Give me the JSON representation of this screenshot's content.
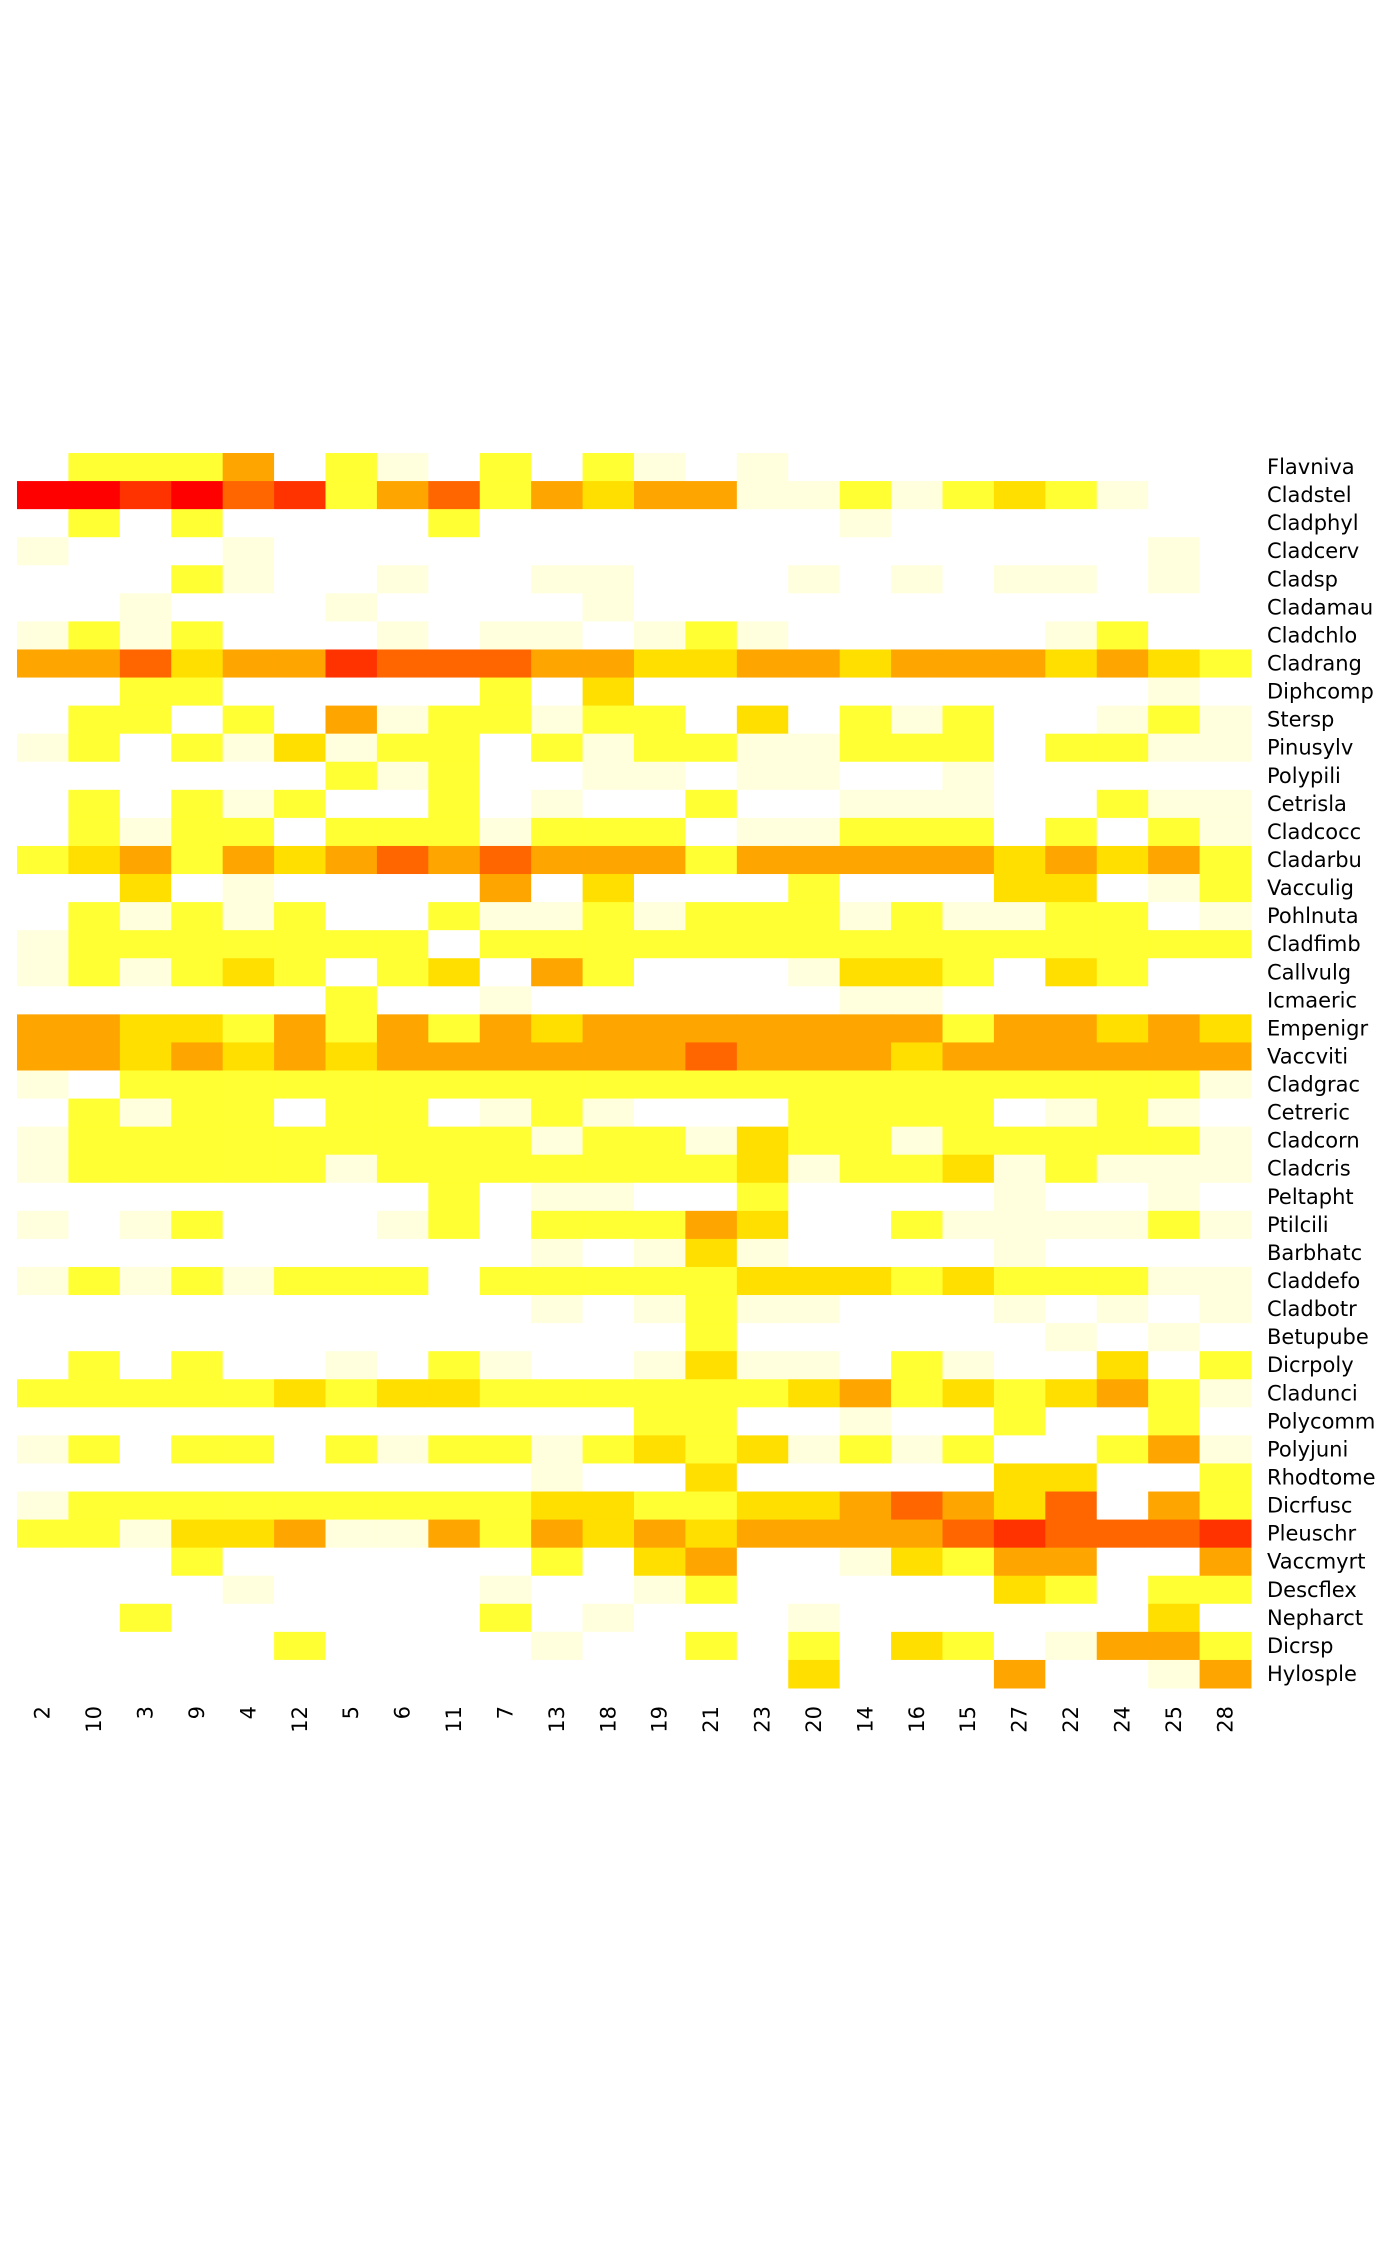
{
  "chart_data": {
    "type": "heatmap",
    "categories": [
      "2",
      "10",
      "3",
      "9",
      "4",
      "12",
      "5",
      "6",
      "11",
      "7",
      "13",
      "18",
      "19",
      "21",
      "23",
      "20",
      "14",
      "16",
      "15",
      "27",
      "22",
      "24",
      "25",
      "28"
    ],
    "rows": [
      "Flavniva",
      "Cladstel",
      "Cladphyl",
      "Cladcerv",
      "Cladsp",
      "Cladamau",
      "Cladchlo",
      "Cladrang",
      "Diphcomp",
      "Stersp",
      "Pinusylv",
      "Polypili",
      "Cetrisla",
      "Cladcocc",
      "Cladarbu",
      "Vacculig",
      "Pohlnuta",
      "Cladfimb",
      "Callvulg",
      "Icmaeric",
      "Empenigr",
      "Vaccviti",
      "Cladgrac",
      "Cetreric",
      "Cladcorn",
      "Cladcris",
      "Peltapht",
      "Ptilcili",
      "Barbhatc",
      "Claddefo",
      "Cladbotr",
      "Betupube",
      "Dicrpoly",
      "Cladunci",
      "Polycomm",
      "Polyjuni",
      "Rhodtome",
      "Dicrfusc",
      "Pleuschr",
      "Vaccmyrt",
      "Descflex",
      "Nepharct",
      "Dicrsp",
      "Hylosple"
    ],
    "colors": [
      "#FFFFFF",
      "#FFFFDD",
      "#FFFF33",
      "#FFDF00",
      "#FFA500",
      "#FF6600",
      "#FF3300",
      "#FF0000"
    ],
    "values": [
      [
        0,
        2,
        2,
        2,
        4,
        0,
        2,
        1,
        0,
        2,
        0,
        2,
        1,
        0,
        1,
        0,
        0,
        0,
        0,
        0,
        0,
        0,
        0,
        0
      ],
      [
        7,
        7,
        6,
        7,
        5,
        6,
        2,
        4,
        5,
        2,
        4,
        3,
        4,
        4,
        1,
        1,
        2,
        1,
        2,
        3,
        2,
        1,
        0,
        0
      ],
      [
        0,
        2,
        0,
        2,
        0,
        0,
        0,
        0,
        2,
        0,
        0,
        0,
        0,
        0,
        0,
        0,
        1,
        0,
        0,
        0,
        0,
        0,
        0,
        0
      ],
      [
        1,
        0,
        0,
        0,
        1,
        0,
        0,
        0,
        0,
        0,
        0,
        0,
        0,
        0,
        0,
        0,
        0,
        0,
        0,
        0,
        0,
        0,
        1,
        0
      ],
      [
        0,
        0,
        0,
        2,
        1,
        0,
        0,
        1,
        0,
        0,
        1,
        1,
        0,
        0,
        0,
        1,
        0,
        1,
        0,
        1,
        1,
        0,
        1,
        0
      ],
      [
        0,
        0,
        1,
        0,
        0,
        0,
        1,
        0,
        0,
        0,
        0,
        1,
        0,
        0,
        0,
        0,
        0,
        0,
        0,
        0,
        0,
        0,
        0,
        0
      ],
      [
        1,
        2,
        1,
        2,
        0,
        0,
        0,
        1,
        0,
        1,
        1,
        0,
        1,
        2,
        1,
        0,
        0,
        0,
        0,
        0,
        1,
        2,
        0,
        0
      ],
      [
        4,
        4,
        5,
        3,
        4,
        4,
        6,
        5,
        5,
        5,
        4,
        4,
        3,
        3,
        4,
        4,
        3,
        4,
        4,
        4,
        3,
        4,
        3,
        2
      ],
      [
        0,
        0,
        2,
        2,
        0,
        0,
        0,
        0,
        0,
        2,
        0,
        3,
        0,
        0,
        0,
        0,
        0,
        0,
        0,
        0,
        0,
        0,
        1,
        0
      ],
      [
        0,
        2,
        2,
        0,
        2,
        0,
        4,
        1,
        2,
        2,
        1,
        2,
        2,
        0,
        3,
        0,
        2,
        1,
        2,
        0,
        0,
        1,
        2,
        1
      ],
      [
        1,
        2,
        0,
        2,
        1,
        3,
        1,
        2,
        2,
        0,
        2,
        1,
        2,
        2,
        1,
        1,
        2,
        2,
        2,
        0,
        2,
        2,
        1,
        1
      ],
      [
        0,
        0,
        0,
        0,
        0,
        0,
        2,
        1,
        2,
        0,
        0,
        1,
        1,
        0,
        1,
        1,
        0,
        0,
        1,
        0,
        0,
        0,
        0,
        0
      ],
      [
        0,
        2,
        0,
        2,
        1,
        2,
        0,
        0,
        2,
        0,
        1,
        0,
        0,
        2,
        0,
        0,
        1,
        1,
        1,
        0,
        0,
        2,
        1,
        1
      ],
      [
        0,
        2,
        1,
        2,
        2,
        0,
        2,
        2,
        2,
        1,
        2,
        2,
        2,
        0,
        1,
        1,
        2,
        2,
        2,
        0,
        2,
        0,
        2,
        1
      ],
      [
        2,
        3,
        4,
        2,
        4,
        3,
        4,
        5,
        4,
        5,
        4,
        4,
        4,
        2,
        4,
        4,
        4,
        4,
        4,
        3,
        4,
        3,
        4,
        2
      ],
      [
        0,
        0,
        3,
        0,
        1,
        0,
        0,
        0,
        0,
        4,
        0,
        3,
        0,
        0,
        0,
        2,
        0,
        0,
        0,
        3,
        3,
        0,
        1,
        2
      ],
      [
        0,
        2,
        1,
        2,
        1,
        2,
        0,
        0,
        2,
        1,
        1,
        2,
        1,
        2,
        2,
        2,
        1,
        2,
        1,
        1,
        2,
        2,
        0,
        1
      ],
      [
        1,
        2,
        2,
        2,
        2,
        2,
        2,
        2,
        0,
        2,
        2,
        2,
        2,
        2,
        2,
        2,
        2,
        2,
        2,
        2,
        2,
        2,
        2,
        2
      ],
      [
        1,
        2,
        1,
        2,
        3,
        2,
        0,
        2,
        3,
        0,
        4,
        2,
        0,
        0,
        0,
        1,
        3,
        3,
        2,
        0,
        3,
        2,
        0,
        0
      ],
      [
        0,
        0,
        0,
        0,
        0,
        0,
        2,
        0,
        0,
        1,
        0,
        0,
        0,
        0,
        0,
        0,
        1,
        1,
        0,
        0,
        0,
        0,
        0,
        0
      ],
      [
        4,
        4,
        3,
        3,
        2,
        4,
        2,
        4,
        2,
        4,
        3,
        4,
        4,
        4,
        4,
        4,
        4,
        4,
        2,
        4,
        4,
        3,
        4,
        3
      ],
      [
        4,
        4,
        3,
        4,
        3,
        4,
        3,
        4,
        4,
        4,
        4,
        4,
        4,
        5,
        4,
        4,
        4,
        3,
        4,
        4,
        4,
        4,
        4,
        4
      ],
      [
        1,
        0,
        2,
        2,
        2,
        2,
        2,
        2,
        2,
        2,
        2,
        2,
        2,
        2,
        2,
        2,
        2,
        2,
        2,
        2,
        2,
        2,
        2,
        1
      ],
      [
        0,
        2,
        1,
        2,
        2,
        0,
        2,
        2,
        0,
        1,
        2,
        1,
        0,
        0,
        0,
        2,
        2,
        2,
        2,
        0,
        1,
        2,
        1,
        0
      ],
      [
        1,
        2,
        2,
        2,
        2,
        2,
        2,
        2,
        2,
        2,
        1,
        2,
        2,
        1,
        3,
        2,
        2,
        1,
        2,
        2,
        2,
        2,
        2,
        1
      ],
      [
        1,
        2,
        2,
        2,
        2,
        2,
        1,
        2,
        2,
        2,
        2,
        2,
        2,
        2,
        3,
        1,
        2,
        2,
        3,
        1,
        2,
        1,
        1,
        1
      ],
      [
        0,
        0,
        0,
        0,
        0,
        0,
        0,
        0,
        2,
        0,
        1,
        1,
        0,
        0,
        2,
        0,
        0,
        0,
        0,
        1,
        0,
        0,
        1,
        0
      ],
      [
        1,
        0,
        1,
        2,
        0,
        0,
        0,
        1,
        2,
        0,
        2,
        2,
        2,
        4,
        3,
        0,
        0,
        2,
        1,
        1,
        1,
        1,
        2,
        1
      ],
      [
        0,
        0,
        0,
        0,
        0,
        0,
        0,
        0,
        0,
        0,
        1,
        0,
        1,
        3,
        1,
        0,
        0,
        0,
        0,
        1,
        0,
        0,
        0,
        0
      ],
      [
        1,
        2,
        1,
        2,
        1,
        2,
        2,
        2,
        0,
        2,
        2,
        2,
        2,
        2,
        3,
        3,
        3,
        2,
        3,
        2,
        2,
        2,
        1,
        1
      ],
      [
        0,
        0,
        0,
        0,
        0,
        0,
        0,
        0,
        0,
        0,
        1,
        0,
        1,
        2,
        1,
        1,
        0,
        0,
        0,
        1,
        0,
        1,
        0,
        1
      ],
      [
        0,
        0,
        0,
        0,
        0,
        0,
        0,
        0,
        0,
        0,
        0,
        0,
        0,
        2,
        0,
        0,
        0,
        0,
        0,
        0,
        1,
        0,
        1,
        0
      ],
      [
        0,
        2,
        0,
        2,
        0,
        0,
        1,
        0,
        2,
        1,
        0,
        0,
        1,
        3,
        1,
        1,
        0,
        2,
        1,
        0,
        0,
        3,
        0,
        2
      ],
      [
        2,
        2,
        2,
        2,
        2,
        3,
        2,
        3,
        3,
        2,
        2,
        2,
        2,
        2,
        2,
        3,
        4,
        2,
        3,
        2,
        3,
        4,
        2,
        1
      ],
      [
        0,
        0,
        0,
        0,
        0,
        0,
        0,
        0,
        0,
        0,
        0,
        0,
        2,
        2,
        0,
        0,
        1,
        0,
        0,
        2,
        0,
        0,
        2,
        0
      ],
      [
        1,
        2,
        0,
        2,
        2,
        0,
        2,
        1,
        2,
        2,
        1,
        2,
        3,
        2,
        3,
        1,
        2,
        1,
        2,
        0,
        0,
        2,
        4,
        1
      ],
      [
        0,
        0,
        0,
        0,
        0,
        0,
        0,
        0,
        0,
        0,
        1,
        0,
        0,
        3,
        0,
        0,
        0,
        0,
        0,
        3,
        3,
        0,
        0,
        2
      ],
      [
        1,
        2,
        2,
        2,
        2,
        2,
        2,
        2,
        2,
        2,
        3,
        3,
        2,
        2,
        3,
        3,
        4,
        5,
        4,
        3,
        5,
        0,
        4,
        2
      ],
      [
        2,
        2,
        1,
        3,
        3,
        4,
        1,
        1,
        4,
        2,
        4,
        3,
        4,
        3,
        4,
        4,
        4,
        4,
        5,
        6,
        5,
        5,
        5,
        6
      ],
      [
        0,
        0,
        0,
        2,
        0,
        0,
        0,
        0,
        0,
        0,
        2,
        0,
        3,
        4,
        0,
        0,
        1,
        3,
        2,
        4,
        4,
        0,
        0,
        4
      ],
      [
        0,
        0,
        0,
        0,
        1,
        0,
        0,
        0,
        0,
        1,
        0,
        0,
        1,
        2,
        0,
        0,
        0,
        0,
        0,
        3,
        2,
        0,
        2,
        2
      ],
      [
        0,
        0,
        2,
        0,
        0,
        0,
        0,
        0,
        0,
        2,
        0,
        1,
        0,
        0,
        0,
        1,
        0,
        0,
        0,
        0,
        0,
        0,
        3,
        0
      ],
      [
        0,
        0,
        0,
        0,
        0,
        2,
        0,
        0,
        0,
        0,
        1,
        0,
        0,
        2,
        0,
        2,
        0,
        3,
        2,
        0,
        1,
        4,
        4,
        2
      ],
      [
        0,
        0,
        0,
        0,
        0,
        0,
        0,
        0,
        0,
        0,
        0,
        0,
        0,
        0,
        0,
        3,
        0,
        0,
        0,
        4,
        0,
        0,
        1,
        4
      ]
    ]
  }
}
